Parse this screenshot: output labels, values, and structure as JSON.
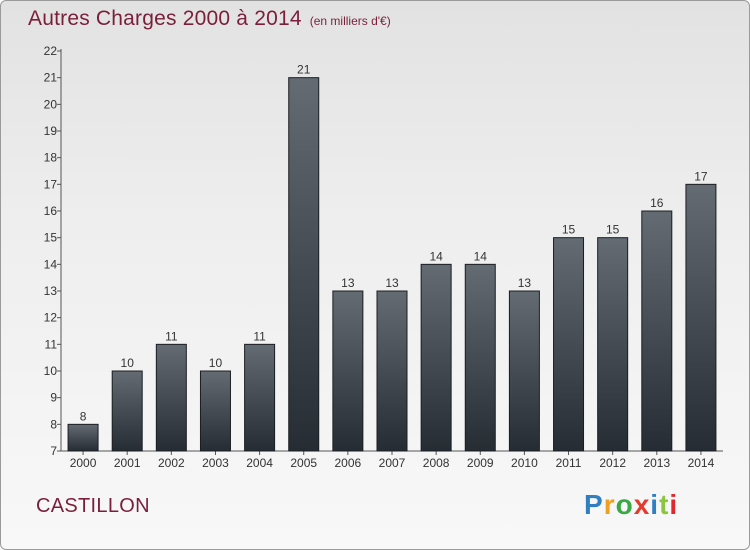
{
  "title": "Autres Charges 2000 à 2014",
  "unit": "(en milliers d'€)",
  "location": "CASTILLON",
  "brand": {
    "letters": [
      "P",
      "r",
      "o",
      "x",
      "i",
      "t",
      "i"
    ],
    "colors": [
      "#2f7fc1",
      "#f0a020",
      "#3aa845",
      "#e23c2e",
      "#2f7fc1",
      "#8cc63f",
      "#e2282e"
    ]
  },
  "chart_data": {
    "type": "bar",
    "title": "Autres Charges 2000 à 2014",
    "xlabel": "",
    "ylabel": "",
    "categories": [
      "2000",
      "2001",
      "2002",
      "2003",
      "2004",
      "2005",
      "2006",
      "2007",
      "2008",
      "2009",
      "2010",
      "2011",
      "2012",
      "2013",
      "2014"
    ],
    "values": [
      8,
      10,
      11,
      10,
      11,
      21,
      13,
      13,
      14,
      14,
      13,
      15,
      15,
      16,
      17
    ],
    "ylim": [
      7,
      22
    ],
    "yticks": [
      "7",
      "8",
      "9",
      "10",
      "11",
      "12",
      "13",
      "14",
      "15",
      "16",
      "17",
      "18",
      "19",
      "20",
      "21",
      "22"
    ],
    "grid": false,
    "bar_color": "#3a4048"
  }
}
